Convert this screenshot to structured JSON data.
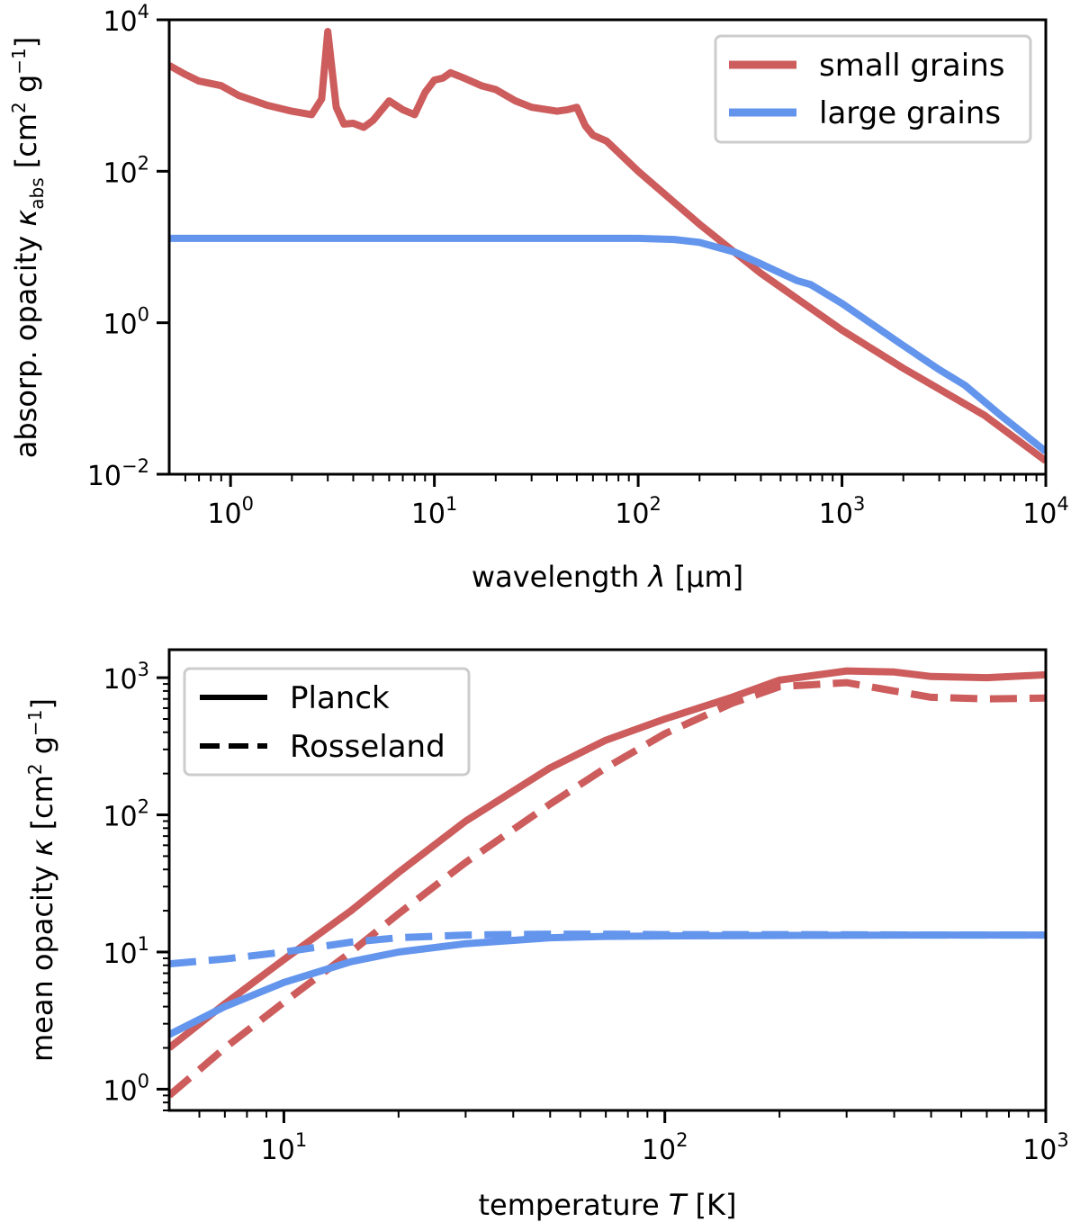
{
  "colors": {
    "small": "#cd5c5c",
    "large": "#6495ed"
  },
  "chart_data": [
    {
      "type": "line",
      "xscale": "log",
      "yscale": "log",
      "xlim": [
        0.5,
        10000
      ],
      "ylim": [
        0.01,
        10000
      ],
      "xlabel": {
        "pre": "wavelength ",
        "sym": "λ",
        "post": " [μm]"
      },
      "ylabel": {
        "pre": "absorp. opacity ",
        "sym": "κ",
        "sub": "abs",
        "post": " [cm",
        "sup1": "2",
        "mid": " g",
        "sup2": "−1",
        "end": "]"
      },
      "xticks": [
        {
          "base": "10",
          "exp": "0"
        },
        {
          "base": "10",
          "exp": "1"
        },
        {
          "base": "10",
          "exp": "2"
        },
        {
          "base": "10",
          "exp": "3"
        },
        {
          "base": "10",
          "exp": "4"
        }
      ],
      "yticks": [
        {
          "base": "10",
          "exp": "−2"
        },
        {
          "base": "10",
          "exp": "0"
        },
        {
          "base": "10",
          "exp": "2"
        },
        {
          "base": "10",
          "exp": "4"
        }
      ],
      "legend": {
        "position": "top-right",
        "entries": [
          {
            "label": "small grains",
            "color_key": "small",
            "dash": "solid"
          },
          {
            "label": "large grains",
            "color_key": "large",
            "dash": "solid"
          }
        ]
      },
      "series": [
        {
          "name": "small grains",
          "color_key": "small",
          "dash": "solid",
          "x": [
            0.5,
            0.6,
            0.7,
            0.9,
            1.1,
            1.5,
            2.0,
            2.5,
            2.8,
            3.0,
            3.3,
            3.6,
            4.0,
            4.5,
            5.0,
            6.0,
            7.0,
            8.0,
            9.0,
            10,
            11,
            12,
            14,
            17,
            20,
            25,
            30,
            40,
            45,
            50,
            55,
            60,
            70,
            100,
            200,
            400,
            1000,
            2000,
            5000,
            10000
          ],
          "y": [
            2500,
            1900,
            1550,
            1350,
            1000,
            750,
            620,
            560,
            900,
            7000,
            700,
            420,
            430,
            380,
            470,
            850,
            650,
            560,
            1100,
            1600,
            1700,
            2000,
            1700,
            1350,
            1200,
            850,
            700,
            620,
            650,
            700,
            400,
            300,
            250,
            100,
            20,
            4.5,
            0.8,
            0.25,
            0.06,
            0.015
          ]
        },
        {
          "name": "large grains",
          "color_key": "large",
          "dash": "solid",
          "x": [
            0.5,
            1,
            10,
            50,
            100,
            150,
            200,
            300,
            400,
            600,
            700,
            1000,
            2000,
            3000,
            4000,
            6000,
            10000
          ],
          "y": [
            13,
            13,
            13,
            13,
            13,
            12.6,
            11.5,
            8.5,
            6.0,
            3.6,
            3.2,
            1.8,
            0.5,
            0.24,
            0.15,
            0.06,
            0.02
          ]
        }
      ]
    },
    {
      "type": "line",
      "xscale": "log",
      "yscale": "log",
      "xlim": [
        5,
        1000
      ],
      "ylim": [
        0.7,
        1600
      ],
      "xlabel": {
        "pre": "temperature ",
        "sym": "T",
        "post": " [K]"
      },
      "ylabel": {
        "pre": "mean opacity ",
        "sym": "κ",
        "post": " [cm",
        "sup1": "2",
        "mid": " g",
        "sup2": "−1",
        "end": "]"
      },
      "xticks": [
        {
          "base": "10",
          "exp": "1"
        },
        {
          "base": "10",
          "exp": "2"
        },
        {
          "base": "10",
          "exp": "3"
        }
      ],
      "yticks": [
        {
          "base": "10",
          "exp": "0"
        },
        {
          "base": "10",
          "exp": "1"
        },
        {
          "base": "10",
          "exp": "2"
        },
        {
          "base": "10",
          "exp": "3"
        }
      ],
      "legend": {
        "position": "top-left",
        "entries": [
          {
            "label": "Planck",
            "color_key": "black",
            "dash": "solid"
          },
          {
            "label": "Rosseland",
            "color_key": "black",
            "dash": "dashed"
          }
        ]
      },
      "series": [
        {
          "name": "small grains Planck",
          "color_key": "small",
          "dash": "solid",
          "x": [
            5,
            7,
            10,
            15,
            20,
            30,
            50,
            70,
            100,
            150,
            200,
            300,
            400,
            500,
            700,
            1000
          ],
          "y": [
            2.0,
            4.2,
            8.8,
            20,
            38,
            90,
            220,
            350,
            500,
            720,
            960,
            1120,
            1100,
            1020,
            1000,
            1050
          ]
        },
        {
          "name": "small grains Rosseland",
          "color_key": "small",
          "dash": "dashed",
          "x": [
            5,
            7,
            10,
            15,
            20,
            30,
            50,
            70,
            100,
            150,
            200,
            300,
            400,
            500,
            700,
            1000
          ],
          "y": [
            0.9,
            2.0,
            4.3,
            10,
            19,
            45,
            120,
            220,
            390,
            650,
            860,
            920,
            800,
            720,
            700,
            710
          ]
        },
        {
          "name": "large grains Planck",
          "color_key": "large",
          "dash": "solid",
          "x": [
            5,
            7,
            10,
            15,
            20,
            30,
            50,
            70,
            100,
            200,
            500,
            1000
          ],
          "y": [
            2.5,
            4.0,
            6.0,
            8.5,
            10.0,
            11.5,
            12.7,
            13.0,
            13.1,
            13.2,
            13.3,
            13.3
          ]
        },
        {
          "name": "large grains Rosseland",
          "color_key": "large",
          "dash": "dashed",
          "x": [
            5,
            7,
            10,
            15,
            20,
            30,
            50,
            70,
            100,
            200,
            500,
            1000
          ],
          "y": [
            8.2,
            8.9,
            10.0,
            11.8,
            12.7,
            13.3,
            13.5,
            13.5,
            13.4,
            13.4,
            13.3,
            13.3
          ]
        }
      ]
    }
  ]
}
